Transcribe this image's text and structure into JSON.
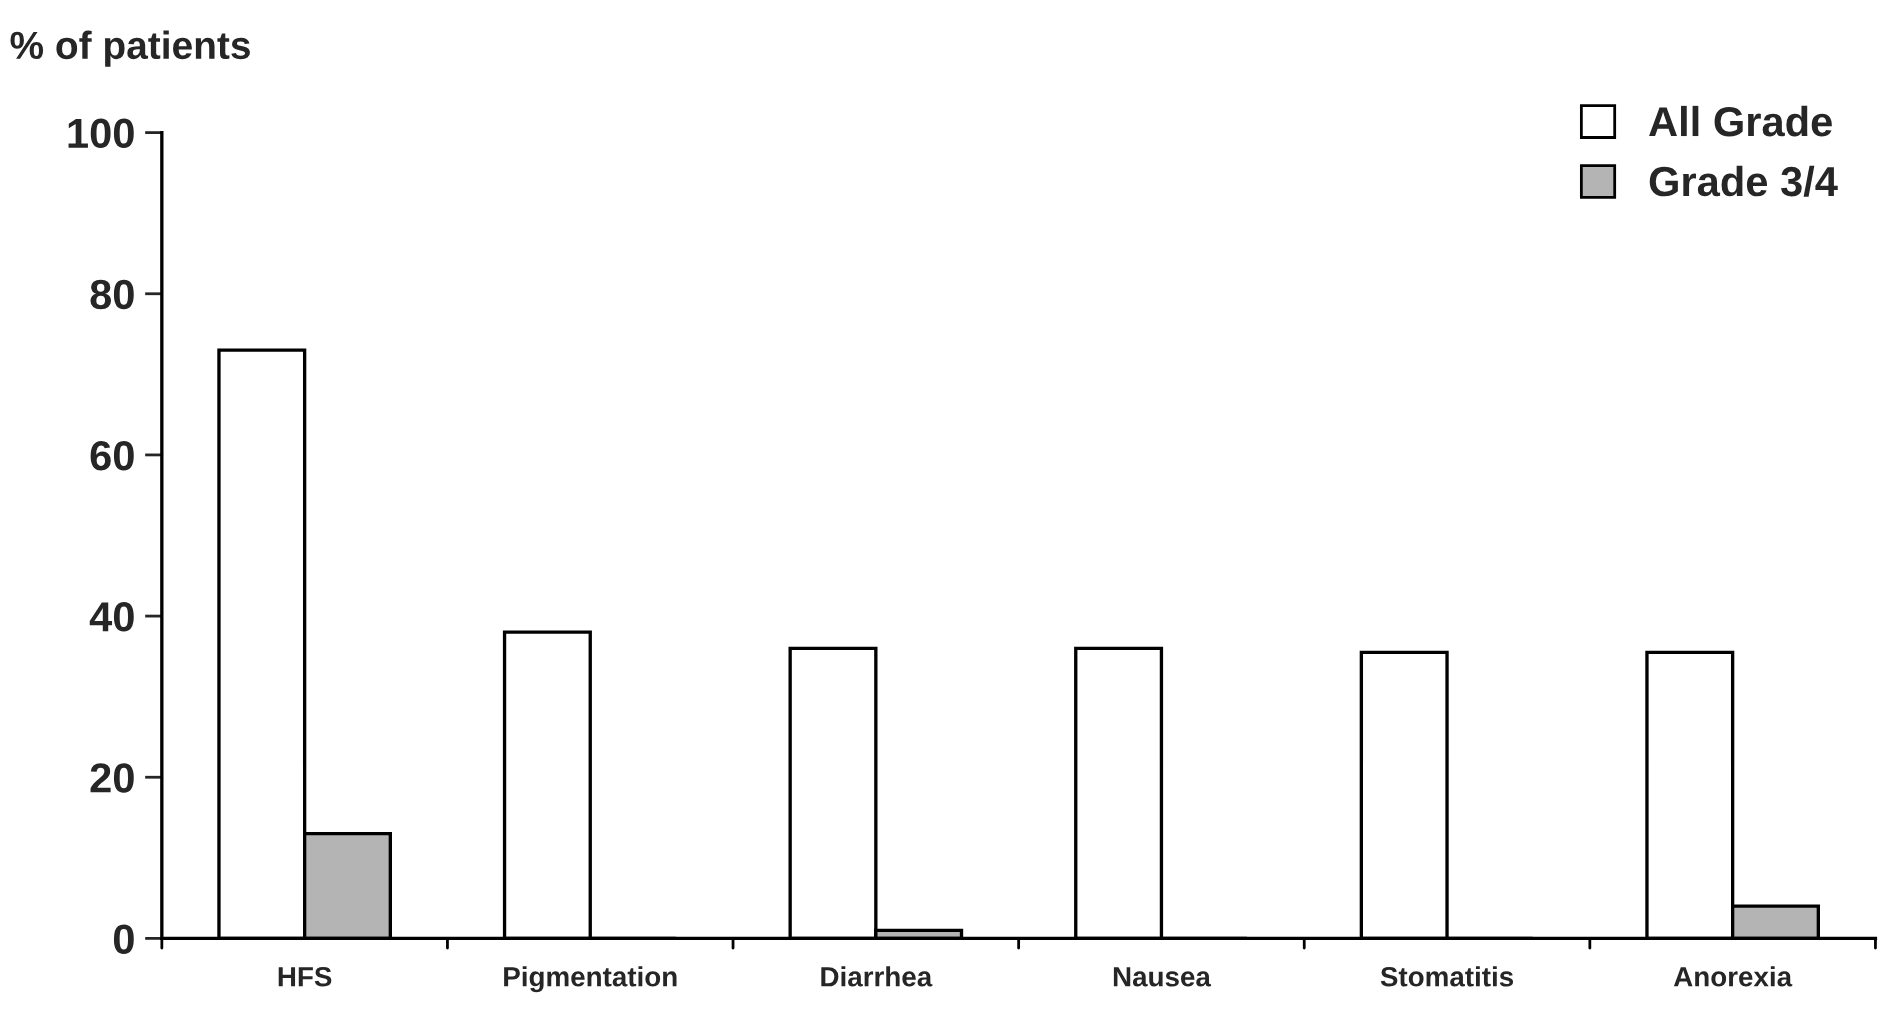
{
  "chart_data": {
    "type": "bar",
    "ylabel": "% of patients",
    "categories": [
      "HFS",
      "Pigmentation",
      "Diarrhea",
      "Nausea",
      "Stomatitis",
      "Anorexia"
    ],
    "series": [
      {
        "name": "All Grade",
        "color": "#ffffff",
        "values": [
          73,
          38,
          36,
          36,
          35.5,
          35.5
        ]
      },
      {
        "name": "Grade 3/4",
        "color": "#b4b4b4",
        "values": [
          13,
          0,
          1,
          0,
          0,
          4
        ]
      }
    ],
    "ylim": [
      0,
      100
    ],
    "yticks": [
      0,
      20,
      40,
      60,
      80,
      100
    ],
    "grid": false,
    "legend": "top right"
  }
}
